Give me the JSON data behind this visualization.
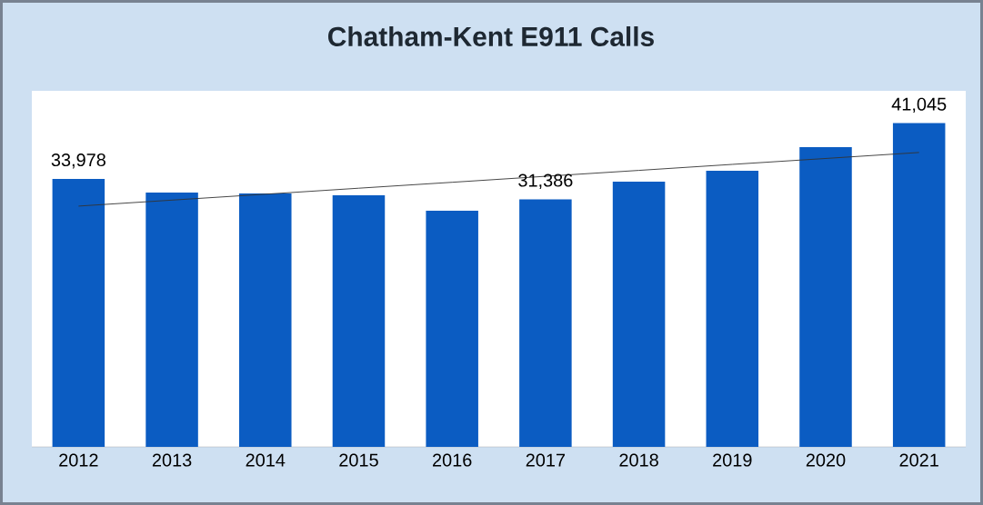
{
  "chart_data": {
    "type": "bar",
    "title": "Chatham-Kent E911 Calls",
    "categories": [
      "2012",
      "2013",
      "2014",
      "2015",
      "2016",
      "2017",
      "2018",
      "2019",
      "2020",
      "2021"
    ],
    "tick_labels": "x",
    "series": [
      {
        "color": "#0b5cc2",
        "values": [
          33978,
          32260,
          32140,
          31910,
          29950,
          31386,
          33640,
          35020,
          38020,
          41045
        ],
        "value_labels": [
          "33,978",
          null,
          null,
          null,
          null,
          "31,386",
          null,
          null,
          null,
          "41,045"
        ]
      },
      {
        "type": "line",
        "color": "#333333",
        "values": [
          30530,
          31290,
          32040,
          32800,
          33550,
          34310,
          35060,
          35820,
          36570,
          37330
        ]
      }
    ]
  }
}
